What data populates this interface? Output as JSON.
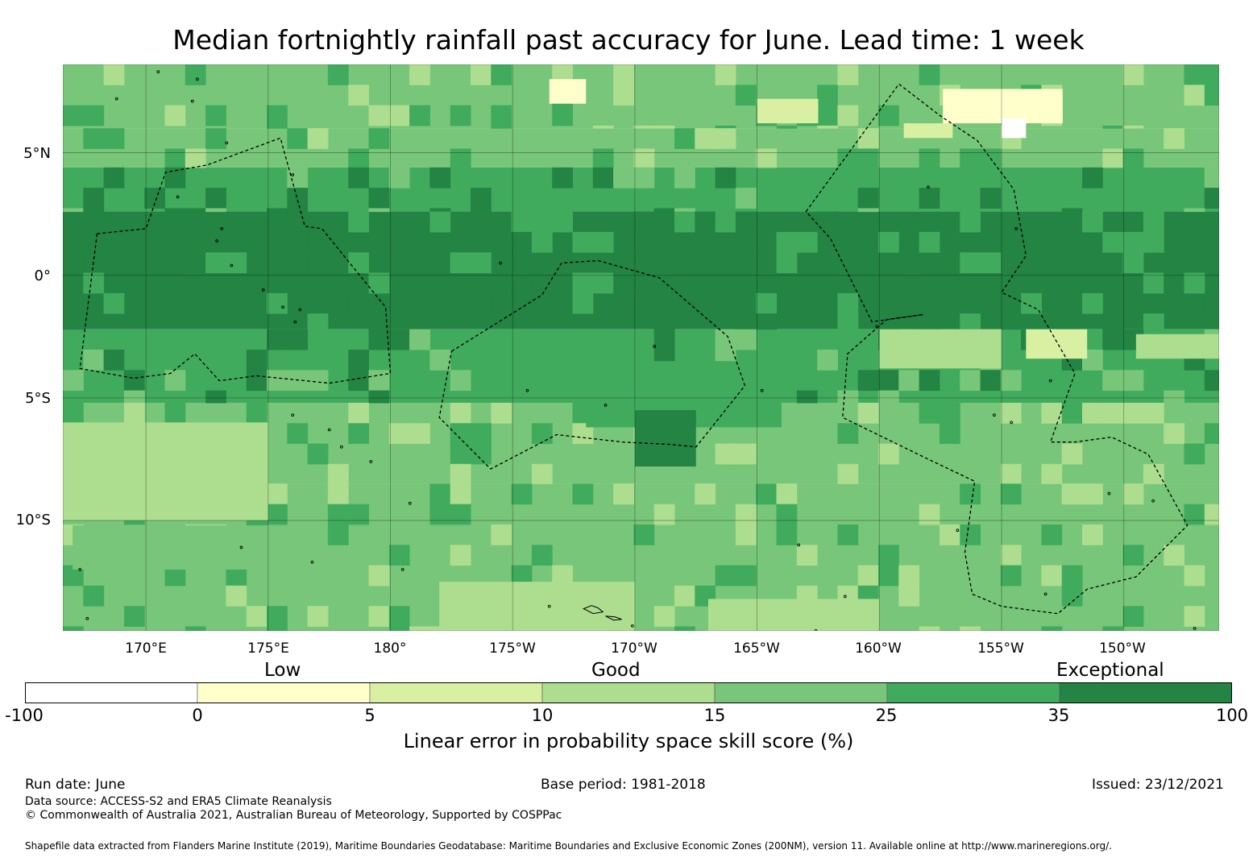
{
  "title": "Median fortnightly rainfall past accuracy for June. Lead time: 1 week",
  "map": {
    "lon_range": [
      166.6,
      213.9
    ],
    "lat_range": [
      -14.5,
      8.6
    ],
    "lon_ticks": [
      {
        "value": 170,
        "label": "170°E"
      },
      {
        "value": 175,
        "label": "175°E"
      },
      {
        "value": 180,
        "label": "180°"
      },
      {
        "value": 185,
        "label": "175°W"
      },
      {
        "value": 190,
        "label": "170°W"
      },
      {
        "value": 195,
        "label": "165°W"
      },
      {
        "value": 200,
        "label": "160°W"
      },
      {
        "value": 205,
        "label": "155°W"
      },
      {
        "value": 210,
        "label": "150°W"
      }
    ],
    "lat_ticks": [
      {
        "value": 5,
        "label": "5°N"
      },
      {
        "value": 0,
        "label": "0°"
      },
      {
        "value": -5,
        "label": "5°S"
      },
      {
        "value": -10,
        "label": "10°S"
      }
    ],
    "band_rows": [
      {
        "lat": [
          6.0,
          8.6
        ],
        "value": 18
      },
      {
        "lat": [
          4.4,
          6.0
        ],
        "value": 20
      },
      {
        "lat": [
          2.6,
          4.4
        ],
        "value": 32
      },
      {
        "lat": [
          -2.2,
          2.6
        ],
        "value": 45
      },
      {
        "lat": [
          -5.2,
          -2.2
        ],
        "value": 30
      },
      {
        "lat": [
          -8.5,
          -5.2
        ],
        "value": 22
      },
      {
        "lat": [
          -14.5,
          -8.5
        ],
        "value": 18
      }
    ],
    "patches": [
      {
        "lon": [
          186.5,
          188.0
        ],
        "lat": [
          7.0,
          8.0
        ],
        "value": 3
      },
      {
        "lon": [
          202.6,
          207.5
        ],
        "lat": [
          6.2,
          7.6
        ],
        "value": 3
      },
      {
        "lon": [
          205.0,
          206.0
        ],
        "lat": [
          5.6,
          6.4
        ],
        "value": -5
      },
      {
        "lon": [
          195.0,
          197.5
        ],
        "lat": [
          6.2,
          7.2
        ],
        "value": 7
      },
      {
        "lon": [
          201.0,
          203.0
        ],
        "lat": [
          5.6,
          6.2
        ],
        "value": 7
      },
      {
        "lon": [
          206.0,
          208.5
        ],
        "lat": [
          -3.4,
          -2.2
        ],
        "value": 7
      },
      {
        "lon": [
          210.5,
          213.9
        ],
        "lat": [
          -3.4,
          -2.4
        ],
        "value": 12
      },
      {
        "lon": [
          166.6,
          175.0
        ],
        "lat": [
          -10.0,
          -6.0
        ],
        "value": 12
      },
      {
        "lon": [
          188.0,
          196.0
        ],
        "lat": [
          -6.2,
          -3.5
        ],
        "value": 32
      },
      {
        "lon": [
          190.0,
          192.5
        ],
        "lat": [
          -7.8,
          -5.5
        ],
        "value": 40
      },
      {
        "lon": [
          200.0,
          205.0
        ],
        "lat": [
          -3.8,
          -2.2
        ],
        "value": 14
      },
      {
        "lon": [
          167.0,
          176.0
        ],
        "lat": [
          -12.0,
          -10.2
        ],
        "value": 16
      },
      {
        "lon": [
          182.0,
          190.0
        ],
        "lat": [
          -14.5,
          -12.5
        ],
        "value": 12
      },
      {
        "lon": [
          193.0,
          200.0
        ],
        "lat": [
          -14.5,
          -13.2
        ],
        "value": 10
      }
    ],
    "eez_outlines": [
      {
        "name": "gilberts",
        "points": [
          [
            168.0,
            1.7
          ],
          [
            170.0,
            1.9
          ],
          [
            170.8,
            4.2
          ],
          [
            172.5,
            4.5
          ],
          [
            175.5,
            5.6
          ],
          [
            176.5,
            2.0
          ],
          [
            177.2,
            1.9
          ],
          [
            179.8,
            -1.3
          ],
          [
            180.0,
            -4.0
          ],
          [
            177.5,
            -4.4
          ],
          [
            174.5,
            -4.1
          ],
          [
            173.0,
            -4.3
          ],
          [
            172.0,
            -3.2
          ],
          [
            171.0,
            -4.0
          ],
          [
            169.5,
            -4.2
          ],
          [
            167.3,
            -3.8
          ]
        ]
      },
      {
        "name": "phoenix",
        "points": [
          [
            182.5,
            -3.1
          ],
          [
            186.2,
            -0.8
          ],
          [
            187.0,
            0.5
          ],
          [
            188.5,
            0.6
          ],
          [
            191.0,
            -0.1
          ],
          [
            193.8,
            -2.5
          ],
          [
            194.5,
            -4.5
          ],
          [
            192.5,
            -7.0
          ],
          [
            191.5,
            -6.9
          ],
          [
            189.5,
            -6.8
          ],
          [
            186.8,
            -6.5
          ],
          [
            184.1,
            -7.9
          ],
          [
            182.0,
            -5.8
          ]
        ]
      },
      {
        "name": "line-islands",
        "points": [
          [
            197.0,
            2.6
          ],
          [
            200.8,
            7.8
          ],
          [
            202.5,
            6.5
          ],
          [
            204.0,
            5.5
          ],
          [
            205.5,
            3.5
          ],
          [
            206.0,
            0.8
          ],
          [
            205.0,
            -0.7
          ],
          [
            206.5,
            -1.4
          ],
          [
            208.0,
            -4.0
          ],
          [
            207.0,
            -6.8
          ],
          [
            208.0,
            -6.8
          ],
          [
            209.5,
            -6.6
          ],
          [
            211.0,
            -7.3
          ],
          [
            212.6,
            -10.2
          ],
          [
            210.5,
            -12.3
          ],
          [
            208.5,
            -12.8
          ],
          [
            207.3,
            -13.8
          ],
          [
            205.0,
            -13.5
          ],
          [
            203.8,
            -13.0
          ],
          [
            203.5,
            -11.3
          ],
          [
            203.9,
            -8.4
          ],
          [
            202.0,
            -7.5
          ],
          [
            198.5,
            -5.8
          ],
          [
            198.7,
            -3.2
          ],
          [
            200.3,
            -1.8
          ],
          [
            201.8,
            -1.6
          ],
          [
            199.7,
            -1.9
          ],
          [
            198.0,
            1.5
          ]
        ]
      }
    ]
  },
  "categories": {
    "low": "Low",
    "good": "Good",
    "exceptional": "Exceptional"
  },
  "colorbar": {
    "label": "Linear error in probability space skill score (%)",
    "ticks": [
      "-100",
      "0",
      "5",
      "10",
      "15",
      "25",
      "35",
      "100"
    ],
    "colors": [
      "#ffffff",
      "#ffffcc",
      "#d9f0a3",
      "#addd8e",
      "#78c679",
      "#41ab5d",
      "#238443"
    ]
  },
  "footer": {
    "run_date": "Run date: June",
    "base_period": "Base period: 1981-2018",
    "issued": "Issued: 23/12/2021",
    "data_source": "Data source: ACCESS-S2 and ERA5 Climate Reanalysis",
    "copyright": "© Commonwealth of Australia 2021, Australian Bureau of Meteorology, Supported by COSPPac",
    "shapefile": "Shapefile data extracted from Flanders Marine Institute (2019), Maritime Boundaries Geodatabase: Maritime Boundaries and Exclusive Economic Zones (200NM), version 11. Available online at http://www.marineregions.org/."
  }
}
